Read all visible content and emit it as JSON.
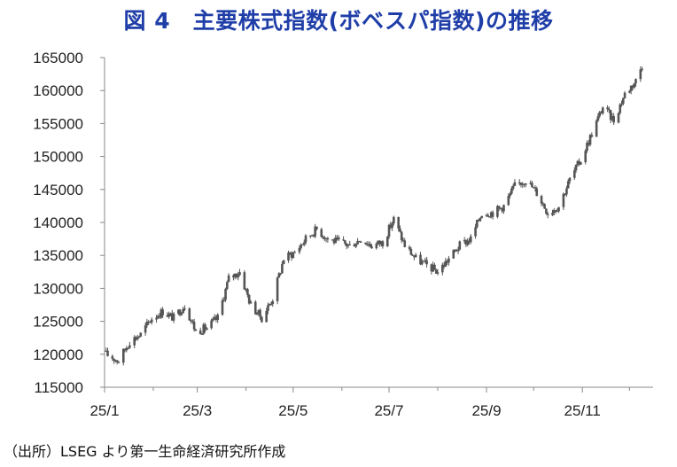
{
  "title": "図 4　主要株式指数(ボベスパ指数)の推移",
  "source": "（出所）LSEG より第一生命経済研究所作成",
  "colors": {
    "title": "#1f3ea8",
    "series": "#555555",
    "axis": "#888888"
  },
  "chart_data": {
    "type": "candlestick",
    "title": "図 4　主要株式指数(ボベスパ指数)の推移",
    "xlabel": "",
    "ylabel": "",
    "ylim": [
      115000,
      165000
    ],
    "yticks": [
      115000,
      120000,
      125000,
      130000,
      135000,
      140000,
      145000,
      150000,
      155000,
      160000,
      165000
    ],
    "ytick_labels": [
      "115000",
      "120000",
      "125000",
      "130000",
      "135000",
      "140000",
      "145000",
      "150000",
      "155000",
      "160000",
      "165000"
    ],
    "xtick_labels": [
      "25/1",
      "25/3",
      "25/5",
      "25/7",
      "25/9",
      "25/11"
    ],
    "grid": false,
    "legend": "none",
    "series": [
      {
        "points": [
          [
            "2025-01-02",
            120000
          ],
          [
            "2025-01-10",
            119000
          ],
          [
            "2025-01-17",
            122000
          ],
          [
            "2025-01-24",
            123000
          ],
          [
            "2025-01-31",
            125500
          ],
          [
            "2025-02-07",
            126500
          ],
          [
            "2025-02-14",
            125500
          ],
          [
            "2025-02-21",
            127500
          ],
          [
            "2025-02-28",
            123500
          ],
          [
            "2025-03-07",
            124000
          ],
          [
            "2025-03-14",
            125500
          ],
          [
            "2025-03-21",
            131500
          ],
          [
            "2025-03-28",
            132500
          ],
          [
            "2025-04-04",
            127500
          ],
          [
            "2025-04-11",
            125500
          ],
          [
            "2025-04-18",
            128500
          ],
          [
            "2025-04-25",
            134500
          ],
          [
            "2025-05-02",
            135500
          ],
          [
            "2025-05-09",
            137500
          ],
          [
            "2025-05-16",
            139000
          ],
          [
            "2025-05-23",
            137500
          ],
          [
            "2025-05-30",
            137000
          ],
          [
            "2025-06-06",
            136500
          ],
          [
            "2025-06-13",
            137500
          ],
          [
            "2025-06-20",
            136500
          ],
          [
            "2025-06-27",
            137000
          ],
          [
            "2025-07-04",
            140500
          ],
          [
            "2025-07-11",
            136500
          ],
          [
            "2025-07-18",
            134500
          ],
          [
            "2025-07-25",
            133500
          ],
          [
            "2025-08-01",
            132500
          ],
          [
            "2025-08-08",
            134500
          ],
          [
            "2025-08-15",
            136500
          ],
          [
            "2025-08-22",
            137500
          ],
          [
            "2025-08-29",
            141500
          ],
          [
            "2025-09-05",
            141500
          ],
          [
            "2025-09-12",
            142500
          ],
          [
            "2025-09-19",
            145500
          ],
          [
            "2025-09-26",
            146500
          ],
          [
            "2025-10-03",
            144500
          ],
          [
            "2025-10-10",
            141500
          ],
          [
            "2025-10-17",
            142500
          ],
          [
            "2025-10-24",
            146500
          ],
          [
            "2025-10-31",
            149500
          ],
          [
            "2025-11-07",
            153500
          ],
          [
            "2025-11-14",
            157500
          ],
          [
            "2025-11-21",
            155500
          ],
          [
            "2025-11-28",
            159500
          ],
          [
            "2025-12-05",
            161500
          ],
          [
            "2025-12-10",
            164500
          ]
        ]
      }
    ]
  }
}
